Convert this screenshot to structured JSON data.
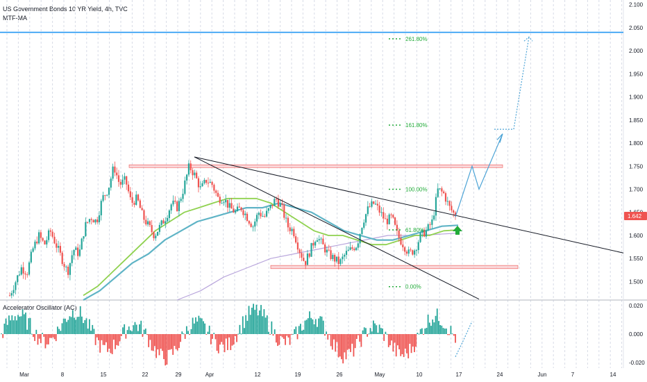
{
  "header": {
    "title": "US Government Bonds 10 YR Yield, 4h, TVC",
    "indicator": "MTF-MA",
    "oscillator_title": "Accelerator Oscillator (AC)"
  },
  "colors": {
    "up": "#26a69a",
    "down": "#ef5350",
    "grid": "#d7dbe6",
    "trendline": "#131722",
    "resistance_line": "#2196f3",
    "projection": "#4ba3d6",
    "fib": "#22ab3a",
    "zone_fill": "#f8c7cb",
    "zone_border": "#ef5350",
    "ma_green": "#8fd14f",
    "ma_teal": "#5fb4c6",
    "ma_purple": "#b9a6dc",
    "price_tag": "#ef5350",
    "arrow": "#22ab3a"
  },
  "chart_data": [
    {
      "type": "candlestick",
      "title": "US Government Bonds 10 YR Yield, 4h, TVC",
      "indicator": "MTF-MA",
      "y_axis": {
        "ylim": [
          1.46,
          2.11
        ],
        "ticks": [
          "2.100",
          "2.050",
          "2.000",
          "1.950",
          "1.900",
          "1.850",
          "1.800",
          "1.750",
          "1.700",
          "1.650",
          "1.600",
          "1.550",
          "1.500"
        ]
      },
      "x_axis": {
        "ticks": [
          "Mar",
          "8",
          "15",
          "22",
          "29",
          "Apr",
          "12",
          "19",
          "26",
          "May",
          "10",
          "17",
          "24",
          "Jun",
          "7",
          "14"
        ]
      },
      "last_price": "1.642",
      "path_closes": [
        1.47,
        1.5,
        1.53,
        1.52,
        1.57,
        1.6,
        1.58,
        1.61,
        1.58,
        1.55,
        1.52,
        1.57,
        1.56,
        1.62,
        1.64,
        1.63,
        1.68,
        1.7,
        1.75,
        1.71,
        1.72,
        1.67,
        1.68,
        1.64,
        1.62,
        1.6,
        1.62,
        1.64,
        1.67,
        1.66,
        1.7,
        1.75,
        1.73,
        1.7,
        1.72,
        1.71,
        1.68,
        1.68,
        1.66,
        1.65,
        1.66,
        1.64,
        1.62,
        1.65,
        1.64,
        1.66,
        1.68,
        1.66,
        1.62,
        1.61,
        1.57,
        1.54,
        1.57,
        1.6,
        1.58,
        1.56,
        1.55,
        1.54,
        1.56,
        1.57,
        1.58,
        1.63,
        1.66,
        1.67,
        1.65,
        1.63,
        1.64,
        1.6,
        1.58,
        1.56,
        1.57,
        1.6,
        1.61,
        1.63,
        1.7,
        1.69,
        1.66,
        1.642
      ],
      "fibonacci": [
        {
          "label": "261.80%",
          "value": 2.026
        },
        {
          "label": "161.80%",
          "value": 1.839
        },
        {
          "label": "100.00%",
          "value": 1.7
        },
        {
          "label": "61.80%",
          "value": 1.612
        },
        {
          "label": "0.00%",
          "value": 1.489
        }
      ],
      "horizontal_lines": [
        {
          "value": 2.04
        }
      ],
      "zones": [
        {
          "low": 1.747,
          "high": 1.753
        },
        {
          "low": 1.528,
          "high": 1.535
        }
      ],
      "moving_averages": {
        "green": [
          1.47,
          1.49,
          1.52,
          1.55,
          1.58,
          1.61,
          1.63,
          1.65,
          1.66,
          1.67,
          1.68,
          1.68,
          1.68,
          1.67,
          1.65,
          1.63,
          1.61,
          1.6,
          1.6,
          1.59,
          1.58,
          1.58,
          1.59,
          1.6,
          1.6,
          1.61,
          1.612
        ],
        "teal": [
          1.46,
          1.48,
          1.51,
          1.54,
          1.56,
          1.59,
          1.61,
          1.63,
          1.64,
          1.65,
          1.66,
          1.66,
          1.67,
          1.66,
          1.65,
          1.63,
          1.61,
          1.6,
          1.59,
          1.59,
          1.6,
          1.61,
          1.62,
          1.622
        ],
        "purple": [
          1.46,
          1.48,
          1.51,
          1.53,
          1.55,
          1.56,
          1.57,
          1.58,
          1.59,
          1.6,
          1.6,
          1.602,
          1.605
        ]
      },
      "projection_path": [
        1.64,
        1.75,
        1.7,
        1.82
      ],
      "projection_dotted": [
        1.83,
        1.83,
        2.03
      ]
    },
    {
      "type": "bar",
      "title": "Accelerator Oscillator (AC)",
      "y_axis": {
        "ticks": [
          "0.020",
          "0.000",
          "-0.020"
        ],
        "ylim": [
          -0.024,
          0.024
        ]
      }
    }
  ]
}
